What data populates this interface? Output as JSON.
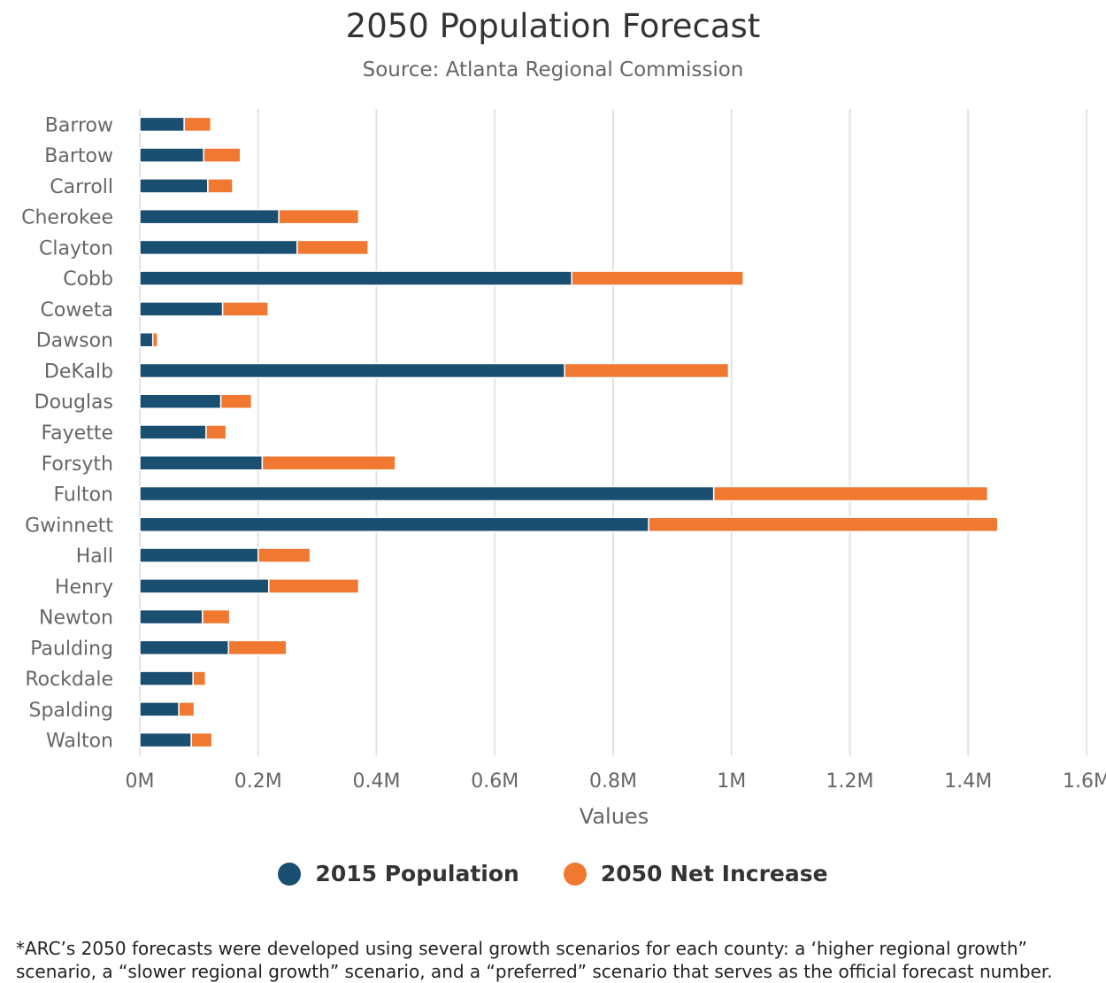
{
  "chart_data": {
    "type": "bar",
    "orientation": "horizontal",
    "stacked": true,
    "title": "2050 Population Forecast",
    "subtitle": "Source: Atlanta Regional Commission",
    "xlabel": "Values",
    "ylabel": "",
    "xlim": [
      0,
      1600000
    ],
    "x_ticks": [
      0,
      200000,
      400000,
      600000,
      800000,
      1000000,
      1200000,
      1400000,
      1600000
    ],
    "x_tick_labels": [
      "0M",
      "0.2M",
      "0.4M",
      "0.6M",
      "0.8M",
      "1M",
      "1.2M",
      "1.4M",
      "1.6M"
    ],
    "grid": true,
    "legend_position": "bottom-center",
    "categories": [
      "Barrow",
      "Bartow",
      "Carroll",
      "Cherokee",
      "Clayton",
      "Cobb",
      "Coweta",
      "Dawson",
      "DeKalb",
      "Douglas",
      "Fayette",
      "Forsyth",
      "Fulton",
      "Gwinnett",
      "Hall",
      "Henry",
      "Newton",
      "Paulding",
      "Rockdale",
      "Spalding",
      "Walton"
    ],
    "series": [
      {
        "name": "2015 Population",
        "color": "#1b4f72",
        "values": [
          75000,
          108000,
          115000,
          235000,
          266000,
          730000,
          140000,
          22000,
          718000,
          137000,
          112000,
          207000,
          970000,
          860000,
          200000,
          218000,
          106000,
          150000,
          90000,
          66000,
          87000
        ]
      },
      {
        "name": "2050 Net Increase",
        "color": "#f07830",
        "values": [
          45000,
          62000,
          42000,
          135000,
          120000,
          290000,
          77000,
          8000,
          277000,
          52000,
          34000,
          225000,
          463000,
          590000,
          88000,
          152000,
          46000,
          98000,
          21000,
          26000,
          35000
        ]
      }
    ]
  },
  "legend": {
    "items": [
      {
        "label": "2015 Population",
        "color": "#1b4f72"
      },
      {
        "label": "2050 Net Increase",
        "color": "#f07830"
      }
    ]
  },
  "footnote": {
    "line1": "*ARC’s 2050 forecasts were developed using several growth scenarios for each county: a ‘higher regional growth”",
    "line2": "scenario, a “slower regional growth” scenario, and a “preferred” scenario that serves as the official forecast number."
  }
}
